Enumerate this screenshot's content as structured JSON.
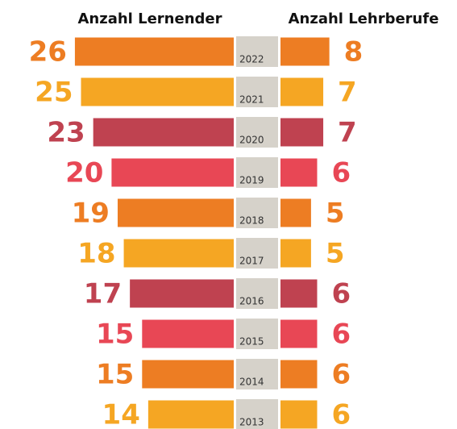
{
  "chart_data": {
    "type": "butterfly-bar",
    "categories": [
      "2022",
      "2021",
      "2020",
      "2019",
      "2018",
      "2017",
      "2016",
      "2015",
      "2014",
      "2013"
    ],
    "colors": [
      "#ED7D23",
      "#F5A623",
      "#BF4250",
      "#E84755",
      "#ED7D23",
      "#F5A623",
      "#BF4250",
      "#E84755",
      "#ED7D23",
      "#F5A623"
    ],
    "series": [
      {
        "name": "Anzahl Lernender",
        "values": [
          26,
          25,
          23,
          20,
          19,
          18,
          17,
          15,
          15,
          14
        ]
      },
      {
        "name": "Anzahl Lehrberufe",
        "values": [
          8,
          7,
          7,
          6,
          5,
          5,
          6,
          6,
          6,
          6
        ]
      }
    ]
  }
}
